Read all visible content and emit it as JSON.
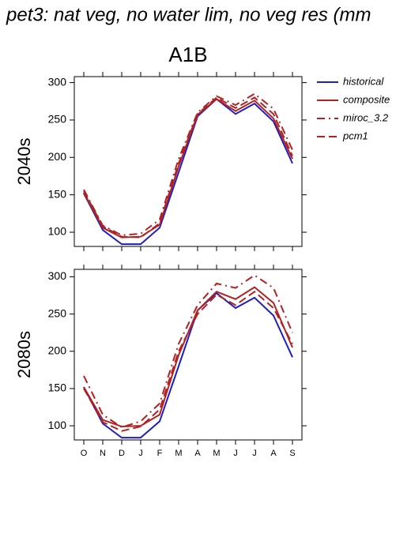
{
  "title": "pet3: nat veg, no water lim, no veg res (mm",
  "subtitle": "A1B",
  "chart_data": [
    {
      "type": "line",
      "ylabel": "2040s",
      "categories": [
        null,
        null,
        null,
        null,
        null,
        null,
        null,
        null,
        null,
        null,
        null,
        null
      ],
      "ylim": [
        81,
        308
      ],
      "yticks": [
        100,
        150,
        200,
        250,
        300
      ],
      "series": [
        {
          "name": "historical",
          "color": "#1f1fbf",
          "dash": "solid",
          "values": [
            152,
            103,
            84,
            84,
            106,
            180,
            255,
            278,
            258,
            272,
            248,
            192
          ]
        },
        {
          "name": "composite",
          "color": "#b22222",
          "dash": "solid",
          "values": [
            153,
            106,
            93,
            94,
            110,
            188,
            257,
            278,
            262,
            276,
            252,
            198
          ]
        },
        {
          "name": "miroc_3.2",
          "color": "#b22222",
          "dash": "dashdot",
          "values": [
            157,
            109,
            96,
            98,
            117,
            198,
            260,
            282,
            270,
            285,
            265,
            210
          ]
        },
        {
          "name": "pcm1",
          "color": "#b22222",
          "dash": "dash",
          "values": [
            155,
            108,
            94,
            93,
            112,
            192,
            258,
            280,
            266,
            280,
            258,
            202
          ]
        }
      ]
    },
    {
      "type": "line",
      "ylabel": "2080s",
      "categories": [
        "O",
        "N",
        "D",
        "J",
        "F",
        "M",
        "A",
        "M",
        "J",
        "J",
        "A",
        "S"
      ],
      "ylim": [
        81,
        310
      ],
      "yticks": [
        100,
        150,
        200,
        250,
        300
      ],
      "series": [
        {
          "color": "#1f1fbf",
          "dash": "solid",
          "values": [
            152,
            103,
            84,
            84,
            106,
            180,
            255,
            278,
            258,
            272,
            248,
            192
          ]
        },
        {
          "color": "#b22222",
          "dash": "solid",
          "values": [
            152,
            108,
            99,
            100,
            115,
            195,
            255,
            280,
            270,
            286,
            265,
            205
          ]
        },
        {
          "color": "#b22222",
          "dash": "dashdot",
          "values": [
            167,
            115,
            98,
            106,
            130,
            210,
            262,
            291,
            285,
            302,
            285,
            225
          ]
        },
        {
          "color": "#b22222",
          "dash": "dash",
          "values": [
            150,
            105,
            93,
            99,
            122,
            200,
            250,
            276,
            262,
            280,
            258,
            210
          ]
        }
      ]
    }
  ]
}
